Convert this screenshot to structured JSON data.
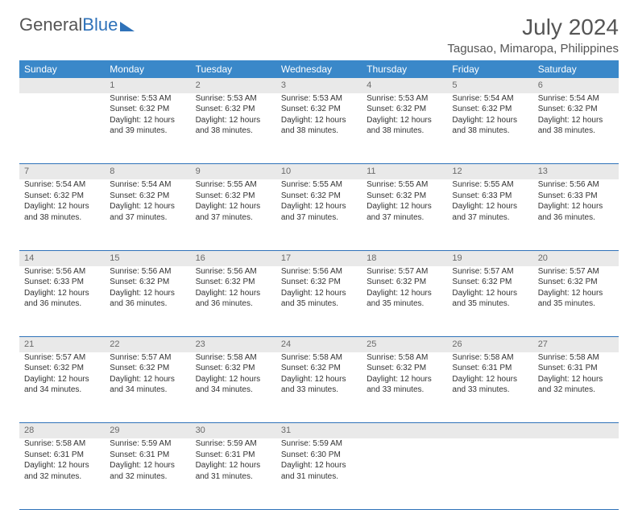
{
  "brand": {
    "part1": "General",
    "part2": "Blue"
  },
  "header": {
    "month": "July 2024",
    "location": "Tagusao, Mimaropa, Philippines"
  },
  "style": {
    "header_bg": "#3a88c9",
    "row_sep": "#2f72b9",
    "daynum_bg": "#e9e9e9",
    "text": "#333333",
    "muted": "#6a6a6a",
    "page_bg": "#ffffff"
  },
  "calendar": {
    "columns": [
      "Sunday",
      "Monday",
      "Tuesday",
      "Wednesday",
      "Thursday",
      "Friday",
      "Saturday"
    ],
    "first_weekday_index": 1,
    "days": [
      {
        "n": 1,
        "sunrise": "5:53 AM",
        "sunset": "6:32 PM",
        "daylight": "12 hours and 39 minutes."
      },
      {
        "n": 2,
        "sunrise": "5:53 AM",
        "sunset": "6:32 PM",
        "daylight": "12 hours and 38 minutes."
      },
      {
        "n": 3,
        "sunrise": "5:53 AM",
        "sunset": "6:32 PM",
        "daylight": "12 hours and 38 minutes."
      },
      {
        "n": 4,
        "sunrise": "5:53 AM",
        "sunset": "6:32 PM",
        "daylight": "12 hours and 38 minutes."
      },
      {
        "n": 5,
        "sunrise": "5:54 AM",
        "sunset": "6:32 PM",
        "daylight": "12 hours and 38 minutes."
      },
      {
        "n": 6,
        "sunrise": "5:54 AM",
        "sunset": "6:32 PM",
        "daylight": "12 hours and 38 minutes."
      },
      {
        "n": 7,
        "sunrise": "5:54 AM",
        "sunset": "6:32 PM",
        "daylight": "12 hours and 38 minutes."
      },
      {
        "n": 8,
        "sunrise": "5:54 AM",
        "sunset": "6:32 PM",
        "daylight": "12 hours and 37 minutes."
      },
      {
        "n": 9,
        "sunrise": "5:55 AM",
        "sunset": "6:32 PM",
        "daylight": "12 hours and 37 minutes."
      },
      {
        "n": 10,
        "sunrise": "5:55 AM",
        "sunset": "6:32 PM",
        "daylight": "12 hours and 37 minutes."
      },
      {
        "n": 11,
        "sunrise": "5:55 AM",
        "sunset": "6:32 PM",
        "daylight": "12 hours and 37 minutes."
      },
      {
        "n": 12,
        "sunrise": "5:55 AM",
        "sunset": "6:33 PM",
        "daylight": "12 hours and 37 minutes."
      },
      {
        "n": 13,
        "sunrise": "5:56 AM",
        "sunset": "6:33 PM",
        "daylight": "12 hours and 36 minutes."
      },
      {
        "n": 14,
        "sunrise": "5:56 AM",
        "sunset": "6:33 PM",
        "daylight": "12 hours and 36 minutes."
      },
      {
        "n": 15,
        "sunrise": "5:56 AM",
        "sunset": "6:32 PM",
        "daylight": "12 hours and 36 minutes."
      },
      {
        "n": 16,
        "sunrise": "5:56 AM",
        "sunset": "6:32 PM",
        "daylight": "12 hours and 36 minutes."
      },
      {
        "n": 17,
        "sunrise": "5:56 AM",
        "sunset": "6:32 PM",
        "daylight": "12 hours and 35 minutes."
      },
      {
        "n": 18,
        "sunrise": "5:57 AM",
        "sunset": "6:32 PM",
        "daylight": "12 hours and 35 minutes."
      },
      {
        "n": 19,
        "sunrise": "5:57 AM",
        "sunset": "6:32 PM",
        "daylight": "12 hours and 35 minutes."
      },
      {
        "n": 20,
        "sunrise": "5:57 AM",
        "sunset": "6:32 PM",
        "daylight": "12 hours and 35 minutes."
      },
      {
        "n": 21,
        "sunrise": "5:57 AM",
        "sunset": "6:32 PM",
        "daylight": "12 hours and 34 minutes."
      },
      {
        "n": 22,
        "sunrise": "5:57 AM",
        "sunset": "6:32 PM",
        "daylight": "12 hours and 34 minutes."
      },
      {
        "n": 23,
        "sunrise": "5:58 AM",
        "sunset": "6:32 PM",
        "daylight": "12 hours and 34 minutes."
      },
      {
        "n": 24,
        "sunrise": "5:58 AM",
        "sunset": "6:32 PM",
        "daylight": "12 hours and 33 minutes."
      },
      {
        "n": 25,
        "sunrise": "5:58 AM",
        "sunset": "6:32 PM",
        "daylight": "12 hours and 33 minutes."
      },
      {
        "n": 26,
        "sunrise": "5:58 AM",
        "sunset": "6:31 PM",
        "daylight": "12 hours and 33 minutes."
      },
      {
        "n": 27,
        "sunrise": "5:58 AM",
        "sunset": "6:31 PM",
        "daylight": "12 hours and 32 minutes."
      },
      {
        "n": 28,
        "sunrise": "5:58 AM",
        "sunset": "6:31 PM",
        "daylight": "12 hours and 32 minutes."
      },
      {
        "n": 29,
        "sunrise": "5:59 AM",
        "sunset": "6:31 PM",
        "daylight": "12 hours and 32 minutes."
      },
      {
        "n": 30,
        "sunrise": "5:59 AM",
        "sunset": "6:31 PM",
        "daylight": "12 hours and 31 minutes."
      },
      {
        "n": 31,
        "sunrise": "5:59 AM",
        "sunset": "6:30 PM",
        "daylight": "12 hours and 31 minutes."
      }
    ],
    "labels": {
      "sunrise": "Sunrise:",
      "sunset": "Sunset:",
      "daylight": "Daylight:"
    }
  }
}
